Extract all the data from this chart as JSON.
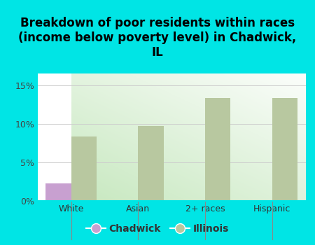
{
  "title": "Breakdown of poor residents within races\n(income below poverty level) in Chadwick,\nIL",
  "categories": [
    "White",
    "Asian",
    "2+ races",
    "Hispanic"
  ],
  "chadwick_values": [
    2.3,
    0,
    0,
    0
  ],
  "illinois_values": [
    8.3,
    9.7,
    13.3,
    13.3
  ],
  "chadwick_color": "#c8a0d0",
  "illinois_color": "#b8c8a0",
  "background_color": "#00e5e5",
  "plot_bg_top_right": "#ffffff",
  "plot_bg_bottom_left": "#c8e8c0",
  "yticks": [
    0,
    5,
    10,
    15
  ],
  "ylim": [
    0,
    16.5
  ],
  "legend_labels": [
    "Chadwick",
    "Illinois"
  ],
  "grid_color": "#cccccc",
  "title_fontsize": 12,
  "tick_fontsize": 9,
  "legend_fontsize": 10,
  "bar_width": 0.38
}
